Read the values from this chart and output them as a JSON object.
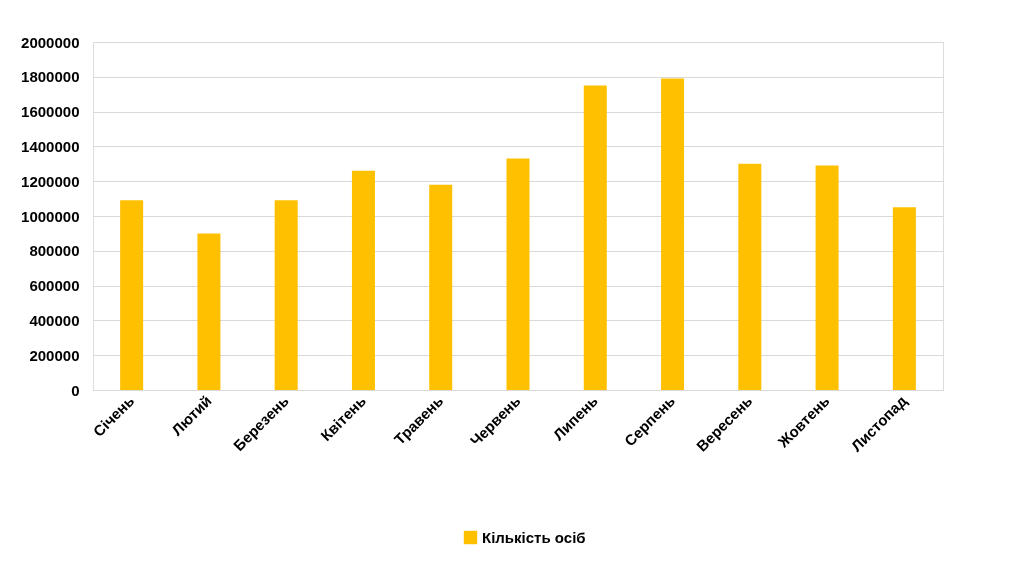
{
  "chart_data": {
    "type": "bar",
    "categories": [
      "Січень",
      "Лютий",
      "Березень",
      "Квітень",
      "Травень",
      "Червень",
      "Липень",
      "Серпень",
      "Вересень",
      "Жовтень",
      "Листопад"
    ],
    "series": [
      {
        "name": "Кількість осіб",
        "color": "#ffc000",
        "values": [
          1090000,
          900000,
          1090000,
          1260000,
          1180000,
          1330000,
          1750000,
          1790000,
          1300000,
          1290000,
          1050000
        ]
      }
    ],
    "ylim": [
      0,
      2000000
    ],
    "yticks": [
      0,
      200000,
      400000,
      600000,
      800000,
      1000000,
      1200000,
      1400000,
      1600000,
      1800000,
      2000000
    ],
    "grid": "y",
    "legend": "bottom"
  }
}
